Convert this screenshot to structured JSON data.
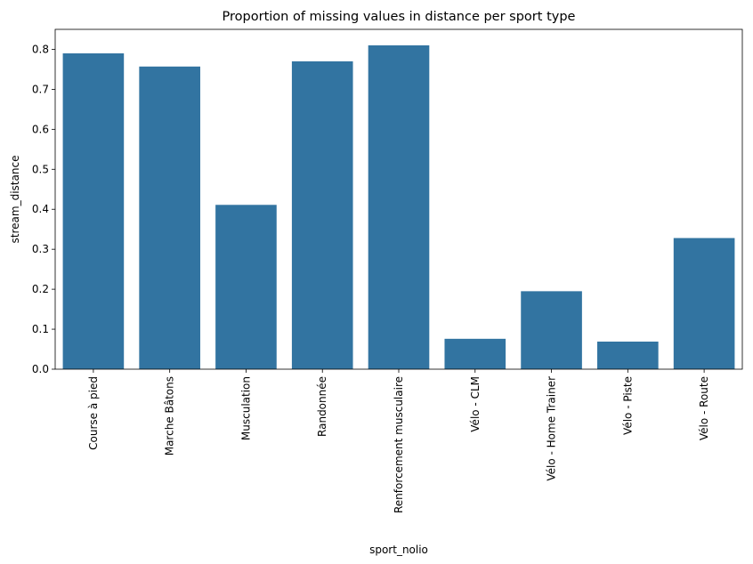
{
  "chart_data": {
    "type": "bar",
    "title": "Proportion of missing values in distance per sport type",
    "xlabel": "sport_nolio",
    "ylabel": "stream_distance",
    "categories": [
      "Course à pied",
      "Marche Bâtons",
      "Musculation",
      "Randonnée",
      "Renforcement musculaire",
      "Vélo - CLM",
      "Vélo - Home Trainer",
      "Vélo - Piste",
      "Vélo - Route"
    ],
    "values": [
      0.79,
      0.757,
      0.411,
      0.77,
      0.81,
      0.076,
      0.195,
      0.069,
      0.328
    ],
    "ylim": [
      0,
      0.85
    ],
    "yticks": [
      "0.0",
      "0.1",
      "0.2",
      "0.3",
      "0.4",
      "0.5",
      "0.6",
      "0.7",
      "0.8"
    ],
    "bar_color": "#3274a1",
    "grid": false,
    "legend": "none"
  }
}
